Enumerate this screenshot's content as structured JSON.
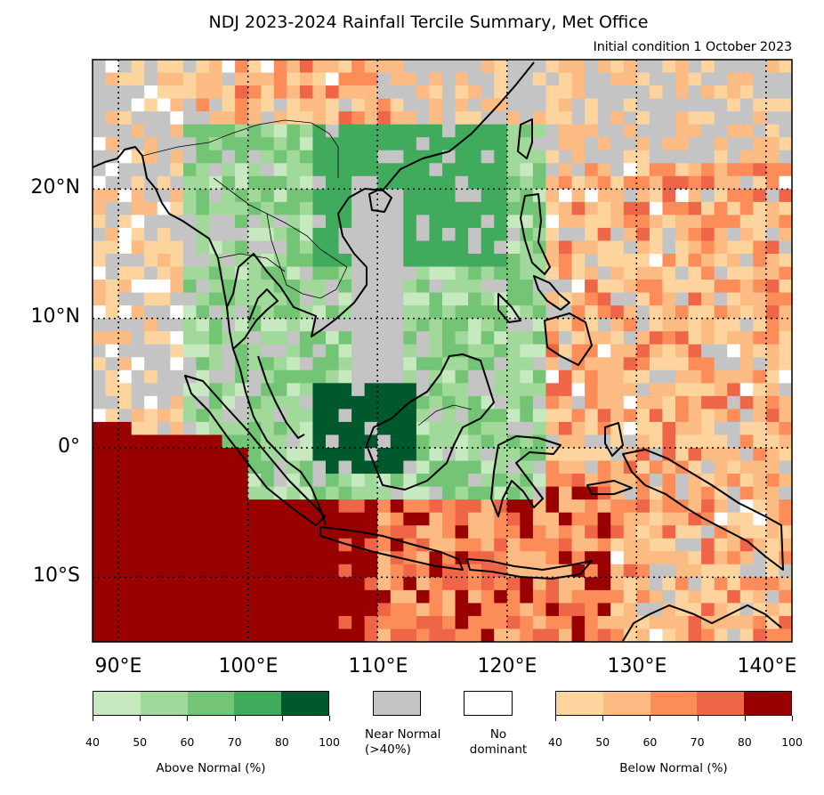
{
  "title": "NDJ 2023-2024 Rainfall Tercile Summary, Met Office",
  "subtitle": "Initial condition 1 October 2023",
  "map": {
    "lon_range": [
      88,
      142
    ],
    "lat_range": [
      -15,
      30
    ],
    "lat_labels": [
      "20°N",
      "10°N",
      "0°",
      "10°S"
    ],
    "lon_labels": [
      "90°E",
      "100°E",
      "110°E",
      "120°E",
      "130°E",
      "140°E"
    ],
    "gridlines": "dotted"
  },
  "legend": {
    "above_normal": {
      "label": "Above Normal (%)",
      "ticks": [
        "40",
        "50",
        "60",
        "70",
        "80",
        "100"
      ],
      "colors": [
        "#c7e9c0",
        "#a1d99b",
        "#74c476",
        "#41ab5d",
        "#00592c"
      ]
    },
    "near_normal": {
      "label_line1": "Near Normal",
      "label_line2": "(>40%)",
      "color": "#c4c4c4"
    },
    "no_dominant": {
      "label_line1": "No",
      "label_line2": "dominant",
      "color": "#ffffff"
    },
    "below_normal": {
      "label": "Below Normal (%)",
      "ticks": [
        "40",
        "50",
        "60",
        "70",
        "80",
        "100"
      ],
      "colors": [
        "#fdd49e",
        "#fdbb84",
        "#fc8d59",
        "#ef6548",
        "#990000"
      ]
    }
  }
}
